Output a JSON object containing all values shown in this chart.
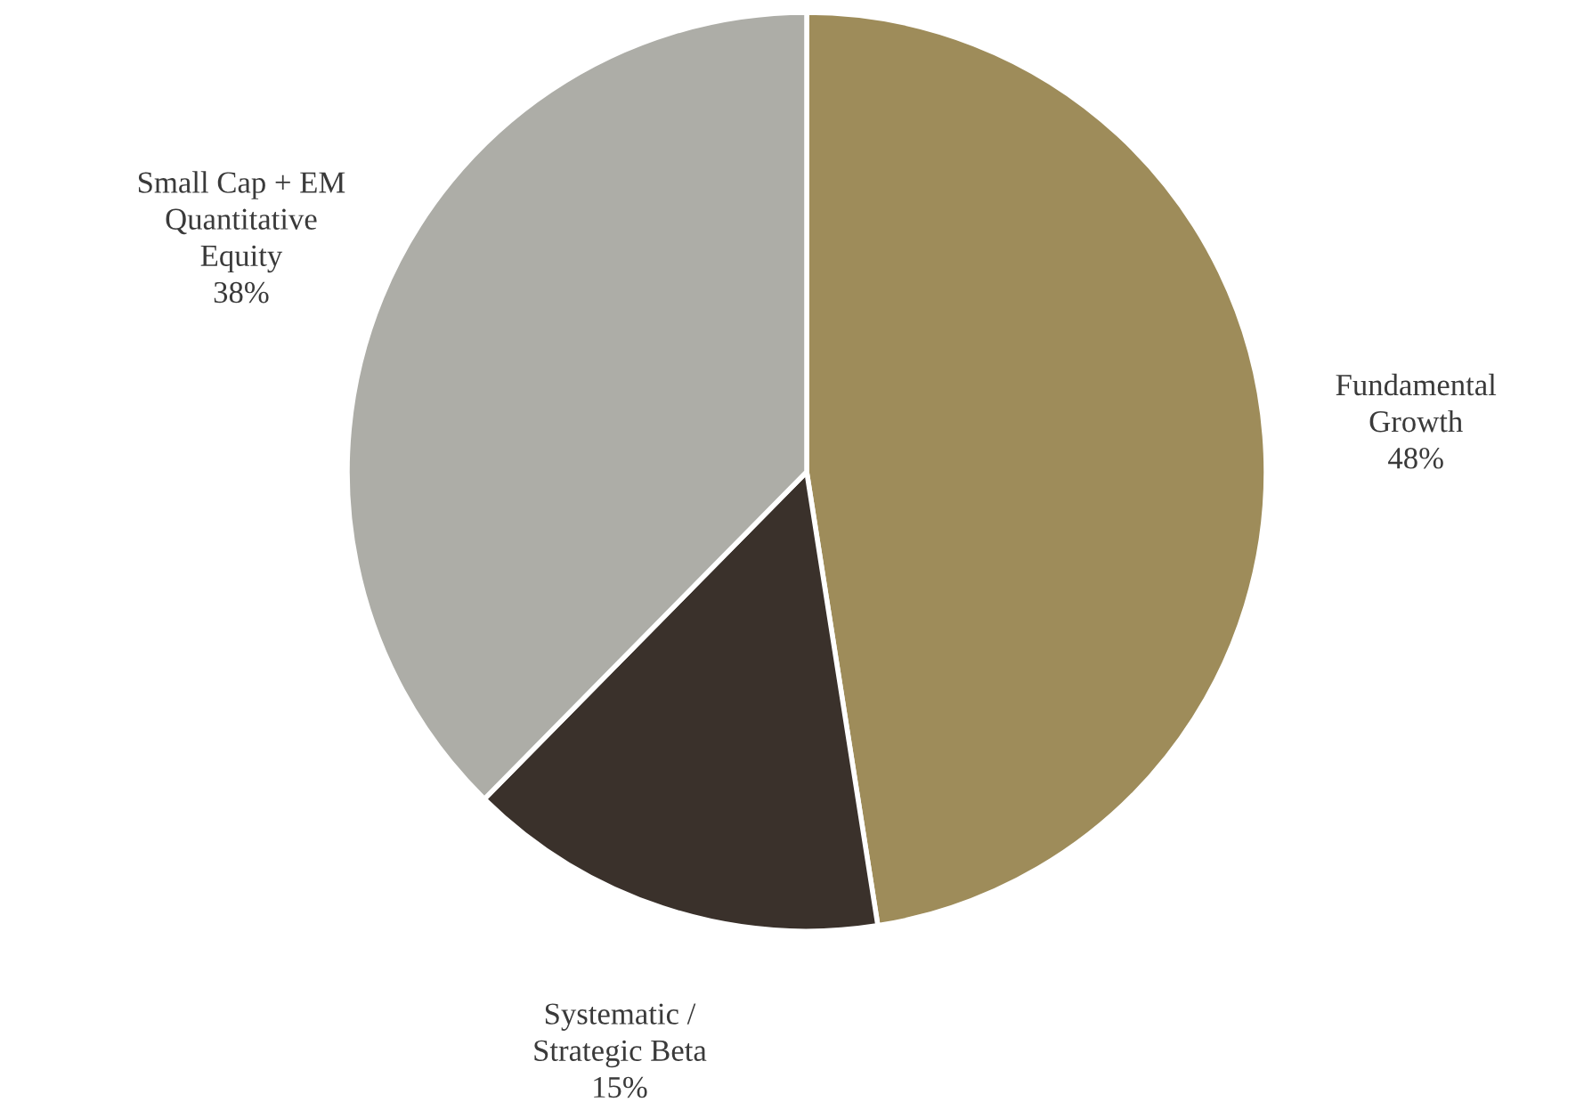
{
  "chart_data": {
    "type": "pie",
    "categories": [
      "Fundamental\nGrowth",
      "Systematic /\nStrategic Beta",
      "Small Cap + EM\nQuantitative\nEquity"
    ],
    "values": [
      48,
      15,
      38
    ],
    "colors": [
      "#9e8c5a",
      "#3a312b",
      "#adada7"
    ],
    "value_labels": [
      "48%",
      "15%",
      "38%"
    ]
  }
}
